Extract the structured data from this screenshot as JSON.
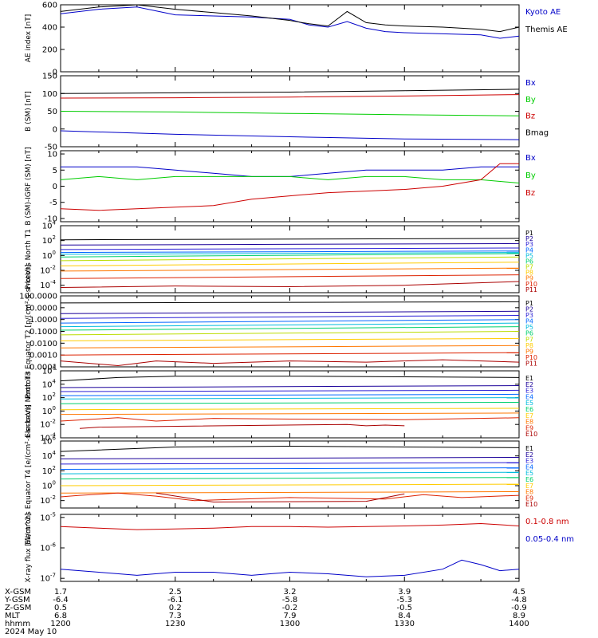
{
  "chart_data": [
    {
      "type": "line",
      "ylabel": "AE index [nT]",
      "ylim": [
        0,
        600
      ],
      "yticks": [
        "0",
        "200",
        "400",
        "600"
      ],
      "yticks_values": [
        0,
        200,
        400,
        600
      ],
      "series": [
        {
          "name": "Kyoto AE",
          "color": "#0000c8",
          "x": [
            1200,
            1210,
            1220,
            1230,
            1240,
            1250,
            1300,
            1305,
            1310,
            1315,
            1320,
            1325,
            1330,
            1340,
            1350,
            1355,
            1400
          ],
          "y": [
            520,
            560,
            580,
            510,
            500,
            490,
            470,
            420,
            400,
            450,
            390,
            360,
            350,
            340,
            330,
            300,
            320
          ]
        },
        {
          "name": "Themis AE",
          "color": "#000000",
          "x": [
            1200,
            1210,
            1220,
            1230,
            1240,
            1250,
            1300,
            1305,
            1310,
            1315,
            1320,
            1325,
            1330,
            1340,
            1350,
            1355,
            1400
          ],
          "y": [
            540,
            580,
            600,
            560,
            530,
            500,
            460,
            430,
            410,
            540,
            440,
            420,
            410,
            400,
            380,
            360,
            400
          ]
        }
      ]
    },
    {
      "type": "line",
      "ylabel": "B (SM) [nT]",
      "ylim": [
        -50,
        150
      ],
      "yticks": [
        "-50",
        "0",
        "50",
        "100",
        "150"
      ],
      "yticks_values": [
        -50,
        0,
        50,
        100,
        150
      ],
      "series": [
        {
          "name": "Bx",
          "color": "#0000c8",
          "x": [
            1200,
            1230,
            1300,
            1330,
            1400
          ],
          "y": [
            -5,
            -15,
            -22,
            -28,
            -30
          ]
        },
        {
          "name": "By",
          "color": "#00cc00",
          "x": [
            1200,
            1230,
            1300,
            1330,
            1400
          ],
          "y": [
            50,
            48,
            44,
            40,
            37
          ]
        },
        {
          "name": "Bz",
          "color": "#cc0000",
          "x": [
            1200,
            1230,
            1300,
            1330,
            1400
          ],
          "y": [
            87,
            88,
            90,
            93,
            97
          ]
        },
        {
          "name": "Bmag",
          "color": "#000000",
          "x": [
            1200,
            1230,
            1300,
            1330,
            1400
          ],
          "y": [
            100,
            102,
            104,
            108,
            112
          ]
        }
      ]
    },
    {
      "type": "line",
      "ylabel": "B (SM)-IGRF (SM) [nT]",
      "ylim": [
        -11,
        11
      ],
      "yticks": [
        "-10",
        "-5",
        "0",
        "5",
        "10"
      ],
      "yticks_values": [
        -10,
        -5,
        0,
        5,
        10
      ],
      "series": [
        {
          "name": "Bx",
          "color": "#0000c8",
          "x": [
            1200,
            1210,
            1220,
            1230,
            1240,
            1250,
            1300,
            1310,
            1320,
            1330,
            1340,
            1350,
            1400
          ],
          "y": [
            6,
            6,
            6,
            5,
            4,
            3,
            3,
            4,
            5,
            5,
            5,
            6,
            6
          ]
        },
        {
          "name": "By",
          "color": "#00cc00",
          "x": [
            1200,
            1210,
            1220,
            1230,
            1240,
            1250,
            1300,
            1310,
            1320,
            1330,
            1340,
            1350,
            1400
          ],
          "y": [
            2,
            3,
            2,
            3,
            3,
            3,
            3,
            2,
            3,
            3,
            2,
            2,
            1
          ]
        },
        {
          "name": "Bz",
          "color": "#cc0000",
          "x": [
            1200,
            1210,
            1220,
            1230,
            1240,
            1250,
            1300,
            1310,
            1320,
            1330,
            1340,
            1350,
            1355,
            1400
          ],
          "y": [
            -7,
            -7.5,
            -7,
            -6.5,
            -6,
            -4,
            -3,
            -2,
            -1.5,
            -1,
            0,
            2,
            7,
            7
          ]
        }
      ]
    },
    {
      "type": "line",
      "ylabel": "Protons North T1",
      "log": true,
      "ylim_exp": [
        -5,
        4
      ],
      "yticks": [
        "10^-4",
        "10^-2",
        "10^0",
        "10^2",
        "10^4"
      ],
      "yticks_values": [
        -4,
        -2,
        0,
        2,
        4
      ],
      "series": [
        {
          "name": "P1",
          "color": "#000000",
          "x": [
            1200,
            1400
          ],
          "y": [
            2.1,
            2.3
          ]
        },
        {
          "name": "P2",
          "color": "#1a0099",
          "x": [
            1200,
            1400
          ],
          "y": [
            1.4,
            1.6
          ]
        },
        {
          "name": "P3",
          "color": "#2a1ed6",
          "x": [
            1200,
            1400
          ],
          "y": [
            0.8,
            1.0
          ]
        },
        {
          "name": "P4",
          "color": "#0066ff",
          "x": [
            1200,
            1400
          ],
          "y": [
            0.4,
            0.6
          ]
        },
        {
          "name": "P5",
          "color": "#00bbdd",
          "x": [
            1200,
            1400
          ],
          "y": [
            0.15,
            0.4
          ]
        },
        {
          "name": "P6",
          "color": "#00d06e",
          "x": [
            1200,
            1400
          ],
          "y": [
            -0.2,
            0.25
          ]
        },
        {
          "name": "P7",
          "color": "#bbdd00",
          "x": [
            1200,
            1400
          ],
          "y": [
            -0.7,
            -0.2
          ]
        },
        {
          "name": "P8",
          "color": "#ffcc00",
          "x": [
            1200,
            1400
          ],
          "y": [
            -1.4,
            -0.9
          ]
        },
        {
          "name": "P9",
          "color": "#ff7700",
          "x": [
            1200,
            1400
          ],
          "y": [
            -2.1,
            -1.7
          ]
        },
        {
          "name": "P10",
          "color": "#dd2200",
          "x": [
            1200,
            1400
          ],
          "y": [
            -3.1,
            -2.6
          ]
        },
        {
          "name": "P11",
          "color": "#aa0000",
          "x": [
            1200,
            1230,
            1300,
            1330,
            1400
          ],
          "y": [
            -4.3,
            -4.1,
            -4.2,
            -4.0,
            -3.5
          ]
        }
      ]
    },
    {
      "type": "line",
      "ylabel": "Protons Equator T2 [p/(cm²-s-sr-keV)]",
      "log": true,
      "ylim_exp": [
        -4,
        2
      ],
      "yticks": [
        "0.0001",
        "0.0010",
        "0.0100",
        "0.1000",
        "1.0000",
        "10.0000",
        "100.0000"
      ],
      "yticks_values": [
        -4,
        -3,
        -2,
        -1,
        0,
        1,
        2
      ],
      "series": [
        {
          "name": "P1",
          "color": "#000000",
          "x": [
            1200,
            1400
          ],
          "y": [
            1.4,
            1.5
          ]
        },
        {
          "name": "P2",
          "color": "#1a0099",
          "x": [
            1200,
            1400
          ],
          "y": [
            0.5,
            0.7
          ]
        },
        {
          "name": "P3",
          "color": "#2a1ed6",
          "x": [
            1200,
            1400
          ],
          "y": [
            0.1,
            0.35
          ]
        },
        {
          "name": "P4",
          "color": "#0066ff",
          "x": [
            1200,
            1400
          ],
          "y": [
            -0.3,
            0.0
          ]
        },
        {
          "name": "P5",
          "color": "#00bbdd",
          "x": [
            1200,
            1400
          ],
          "y": [
            -0.6,
            -0.3
          ]
        },
        {
          "name": "P6",
          "color": "#00d06e",
          "x": [
            1200,
            1400
          ],
          "y": [
            -0.9,
            -0.6
          ]
        },
        {
          "name": "P7",
          "color": "#bbdd00",
          "x": [
            1200,
            1400
          ],
          "y": [
            -1.3,
            -1.0
          ]
        },
        {
          "name": "P8",
          "color": "#ffcc00",
          "x": [
            1200,
            1400
          ],
          "y": [
            -1.8,
            -1.6
          ]
        },
        {
          "name": "P9",
          "color": "#ff7700",
          "x": [
            1200,
            1400
          ],
          "y": [
            -2.4,
            -2.2
          ]
        },
        {
          "name": "P10",
          "color": "#dd2200",
          "x": [
            1200,
            1400
          ],
          "y": [
            -3.0,
            -2.8
          ]
        },
        {
          "name": "P11",
          "color": "#aa0000",
          "x": [
            1200,
            1215,
            1225,
            1240,
            1300,
            1320,
            1340,
            1400
          ],
          "y": [
            -3.5,
            -3.9,
            -3.5,
            -3.7,
            -3.5,
            -3.6,
            -3.4,
            -3.6
          ]
        }
      ]
    },
    {
      "type": "line",
      "ylabel": "Electrons North T3",
      "log": true,
      "ylim_exp": [
        -4,
        6
      ],
      "yticks": [
        "10^-4",
        "10^-2",
        "10^0",
        "10^2",
        "10^4",
        "10^6"
      ],
      "yticks_values": [
        -4,
        -2,
        0,
        2,
        4,
        6
      ],
      "series": [
        {
          "name": "E1",
          "color": "#000000",
          "x": [
            1200,
            1215,
            1230,
            1300,
            1400
          ],
          "y": [
            4.5,
            5.0,
            5.2,
            5.2,
            5.0
          ]
        },
        {
          "name": "E2",
          "color": "#1a0099",
          "x": [
            1200,
            1400
          ],
          "y": [
            3.5,
            3.8
          ]
        },
        {
          "name": "E3",
          "color": "#2a1ed6",
          "x": [
            1200,
            1400
          ],
          "y": [
            2.9,
            3.1
          ]
        },
        {
          "name": "E4",
          "color": "#0066ff",
          "x": [
            1200,
            1400
          ],
          "y": [
            2.3,
            2.5
          ]
        },
        {
          "name": "E5",
          "color": "#00bbdd",
          "x": [
            1200,
            1400
          ],
          "y": [
            1.8,
            2.0
          ]
        },
        {
          "name": "E6",
          "color": "#00d06e",
          "x": [
            1200,
            1400
          ],
          "y": [
            1.1,
            1.3
          ]
        },
        {
          "name": "E7",
          "color": "#ffcc00",
          "x": [
            1200,
            1400
          ],
          "y": [
            0.2,
            0.4
          ]
        },
        {
          "name": "E8",
          "color": "#ff7700",
          "x": [
            1200,
            1400
          ],
          "y": [
            -0.5,
            -0.3
          ]
        },
        {
          "name": "E9",
          "color": "#dd2200",
          "x": [
            1200,
            1215,
            1225,
            1240,
            1300,
            1330,
            1400
          ],
          "y": [
            -1.5,
            -1.0,
            -1.5,
            -1.1,
            -1.2,
            -1.3,
            -1.0
          ]
        },
        {
          "name": "E10",
          "color": "#aa0000",
          "x": [
            1205,
            1210,
            1315,
            1320,
            1325,
            1330
          ],
          "y": [
            -2.6,
            -2.4,
            -2.0,
            -2.2,
            -2.1,
            -2.2
          ]
        }
      ]
    },
    {
      "type": "line",
      "ylabel": "Electrons Equator T4 [e/(cm²-s-sr-keV)]",
      "log": true,
      "ylim_exp": [
        -3,
        6
      ],
      "yticks": [
        "10^-2",
        "10^0",
        "10^2",
        "10^4",
        "10^6"
      ],
      "yticks_values": [
        -2,
        0,
        2,
        4,
        6
      ],
      "series": [
        {
          "name": "E1",
          "color": "#000000",
          "x": [
            1200,
            1230,
            1300,
            1400
          ],
          "y": [
            4.6,
            5.2,
            5.3,
            5.1
          ]
        },
        {
          "name": "E2",
          "color": "#1a0099",
          "x": [
            1200,
            1400
          ],
          "y": [
            3.6,
            3.8
          ]
        },
        {
          "name": "E3",
          "color": "#2a1ed6",
          "x": [
            1200,
            1400
          ],
          "y": [
            2.9,
            3.1
          ]
        },
        {
          "name": "E4",
          "color": "#0066ff",
          "x": [
            1200,
            1400
          ],
          "y": [
            2.2,
            2.4
          ]
        },
        {
          "name": "E5",
          "color": "#00bbdd",
          "x": [
            1200,
            1400
          ],
          "y": [
            1.6,
            1.8
          ]
        },
        {
          "name": "E6",
          "color": "#00d06e",
          "x": [
            1200,
            1400
          ],
          "y": [
            0.9,
            1.1
          ]
        },
        {
          "name": "E7",
          "color": "#ffcc00",
          "x": [
            1200,
            1400
          ],
          "y": [
            0.0,
            0.2
          ]
        },
        {
          "name": "E8",
          "color": "#ff7700",
          "x": [
            1200,
            1400
          ],
          "y": [
            -1.0,
            -0.8
          ]
        },
        {
          "name": "E9",
          "color": "#dd2200",
          "x": [
            1200,
            1205,
            1215,
            1225,
            1235,
            1300,
            1325,
            1335,
            1345,
            1400
          ],
          "y": [
            -1.5,
            -1.3,
            -1.0,
            -1.4,
            -2.0,
            -1.6,
            -1.8,
            -1.2,
            -1.6,
            -1.3
          ]
        },
        {
          "name": "E10",
          "color": "#aa0000",
          "x": [
            1225,
            1240,
            1320,
            1330
          ],
          "y": [
            -1.0,
            -2.2,
            -2.1,
            -1.1
          ]
        }
      ]
    },
    {
      "type": "line",
      "ylabel": "X-ray flux [W/m^2]",
      "log": true,
      "ylim_exp": [
        -7.1,
        -4.9
      ],
      "yticks": [
        "10^-7",
        "10^-6",
        "10^-5"
      ],
      "yticks_values": [
        -7,
        -6,
        -5
      ],
      "series": [
        {
          "name": "0.1-0.8 nm",
          "color": "#cc0000",
          "x": [
            1200,
            1210,
            1220,
            1230,
            1240,
            1250,
            1300,
            1310,
            1320,
            1330,
            1340,
            1350,
            1400
          ],
          "y": [
            -5.3,
            -5.35,
            -5.4,
            -5.38,
            -5.35,
            -5.3,
            -5.3,
            -5.32,
            -5.3,
            -5.28,
            -5.25,
            -5.2,
            -5.28
          ]
        },
        {
          "name": "0.05-0.4 nm",
          "color": "#0000c8",
          "x": [
            1200,
            1210,
            1220,
            1230,
            1240,
            1250,
            1300,
            1310,
            1320,
            1330,
            1340,
            1345,
            1350,
            1355,
            1400
          ],
          "y": [
            -6.7,
            -6.8,
            -6.9,
            -6.8,
            -6.8,
            -6.9,
            -6.8,
            -6.85,
            -6.95,
            -6.9,
            -6.7,
            -6.4,
            -6.55,
            -6.75,
            -6.7
          ]
        }
      ]
    }
  ],
  "x_axis": {
    "labels": [
      "X-GSM",
      "Y-GSM",
      "Z-GSM",
      "MLT",
      "hhmm"
    ],
    "date": "2024 May 10",
    "ticks": [
      {
        "time": 1200,
        "values": [
          "1.7",
          "-6.4",
          "0.5",
          "6.8",
          "1200"
        ]
      },
      {
        "time": 1230,
        "values": [
          "2.5",
          "-6.1",
          "0.2",
          "7.3",
          "1230"
        ]
      },
      {
        "time": 1300,
        "values": [
          "3.2",
          "-5.8",
          "-0.2",
          "7.9",
          "1300"
        ]
      },
      {
        "time": 1330,
        "values": [
          "3.9",
          "-5.3",
          "-0.5",
          "8.4",
          "1330"
        ]
      },
      {
        "time": 1400,
        "values": [
          "4.5",
          "-4.8",
          "-0.9",
          "8.9",
          "1400"
        ]
      }
    ]
  }
}
